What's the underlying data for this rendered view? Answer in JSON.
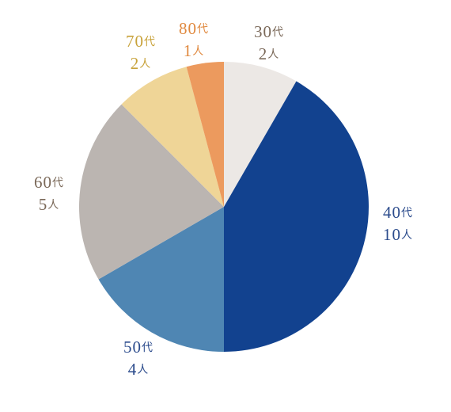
{
  "chart_data": {
    "type": "pie",
    "categories": [
      "30代",
      "40代",
      "50代",
      "60代",
      "70代",
      "80代"
    ],
    "values": [
      2,
      10,
      4,
      5,
      2,
      1
    ],
    "value_labels": [
      "2人",
      "10人",
      "4人",
      "5人",
      "2人",
      "1人"
    ],
    "colors": [
      "#ece8e5",
      "#12428f",
      "#4f86b3",
      "#bbb5b1",
      "#efd597",
      "#ec9a5e"
    ]
  }
}
